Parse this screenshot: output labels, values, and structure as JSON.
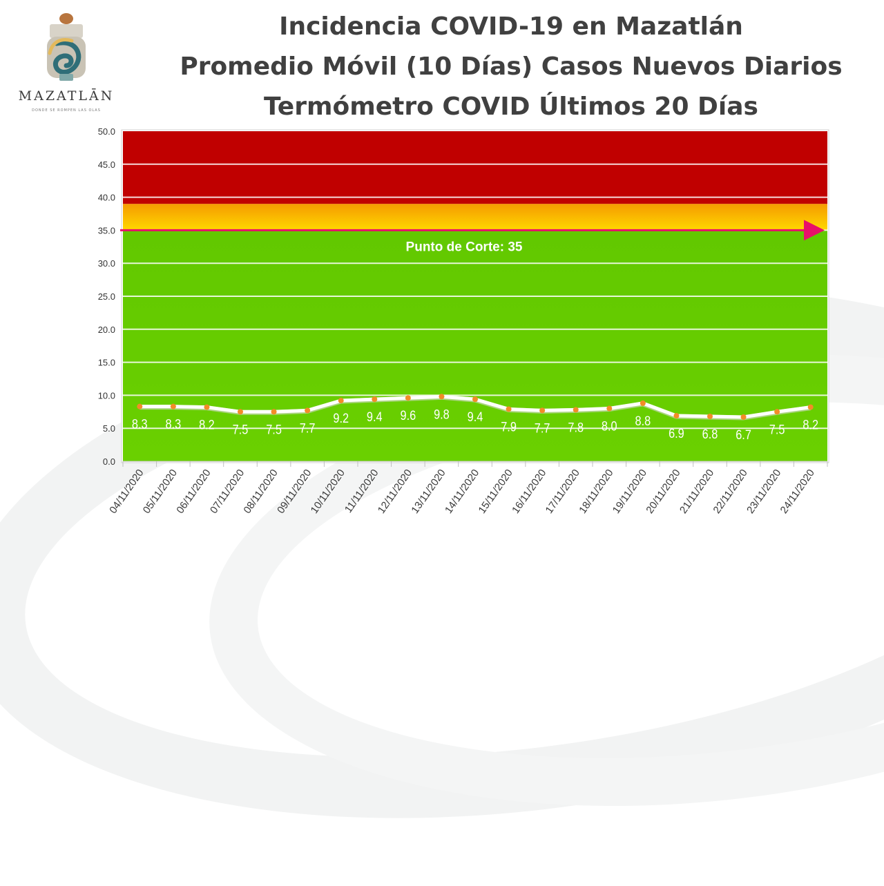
{
  "header": {
    "logo_text": "MAZATLĀN",
    "logo_tagline": "DONDE SE ROMPEN LAS OLAS",
    "title_line1": "Incidencia COVID-19 en Mazatlán",
    "title_line2": "Promedio Móvil (10 Días) Casos Nuevos Diarios",
    "title_line3": "Termómetro COVID Últimos 20 Días"
  },
  "colors": {
    "green_zone": "#66cc00",
    "yellow_zone": "#f5b800",
    "red_zone": "#c00000",
    "cutoff_line": "#e8106a",
    "series_line": "#ffffff",
    "marker": "#f28c28",
    "title_text": "#404040"
  },
  "chart_data": {
    "type": "line",
    "title": "",
    "xlabel": "",
    "ylabel": "",
    "ylim": [
      0,
      50
    ],
    "yticks": [
      "0.0",
      "5.0",
      "10.0",
      "15.0",
      "20.0",
      "25.0",
      "30.0",
      "35.0",
      "40.0",
      "45.0",
      "50.0"
    ],
    "grid": true,
    "categories": [
      "04/11/2020",
      "05/11/2020",
      "06/11/2020",
      "07/11/2020",
      "08/11/2020",
      "09/11/2020",
      "10/11/2020",
      "11/11/2020",
      "12/11/2020",
      "13/11/2020",
      "14/11/2020",
      "15/11/2020",
      "16/11/2020",
      "17/11/2020",
      "18/11/2020",
      "19/11/2020",
      "20/11/2020",
      "21/11/2020",
      "22/11/2020",
      "23/11/2020",
      "24/11/2020"
    ],
    "series": [
      {
        "values": [
          8.3,
          8.3,
          8.2,
          7.5,
          7.5,
          7.7,
          9.2,
          9.4,
          9.6,
          9.8,
          9.4,
          7.9,
          7.7,
          7.8,
          8.0,
          8.8,
          6.9,
          6.8,
          6.7,
          7.5,
          8.2
        ],
        "labels": [
          "8.3",
          "8.3",
          "8.2",
          "7.5",
          "7.5",
          "7.7",
          "9.2",
          "9.4",
          "9.6",
          "9.8",
          "9.4",
          "7.9",
          "7.7",
          "7.8",
          "8.0",
          "8.8",
          "6.9",
          "6.8",
          "6.7",
          "7.5",
          "8.2"
        ]
      }
    ],
    "zones": [
      {
        "name": "green",
        "from": 0,
        "to": 35
      },
      {
        "name": "yellow",
        "from": 35,
        "to": 39
      },
      {
        "name": "red",
        "from": 39,
        "to": 50
      }
    ],
    "cutoff": {
      "value": 35,
      "label": "Punto de Corte: 35"
    }
  }
}
